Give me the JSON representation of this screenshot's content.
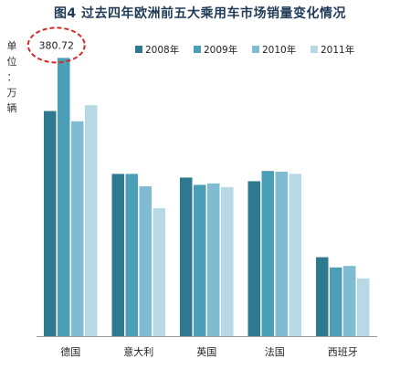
{
  "chart_data": {
    "type": "bar",
    "title": "图4 过去四年欧洲前五大乘用车市场销量变化情况",
    "unit_label": [
      "单",
      "位",
      "：",
      "万",
      "辆"
    ],
    "categories": [
      "德国",
      "意大利",
      "英国",
      "法国",
      "西班牙"
    ],
    "series": [
      {
        "name": "2008年",
        "color": "#2e7890",
        "values": [
          308,
          222,
          217,
          212,
          108
        ]
      },
      {
        "name": "2009年",
        "color": "#4a9eb5",
        "values": [
          380.72,
          222,
          207,
          226,
          94
        ]
      },
      {
        "name": "2010年",
        "color": "#7fbcd1",
        "values": [
          294,
          205,
          209,
          225,
          96
        ]
      },
      {
        "name": "2011年",
        "color": "#b6d9e5",
        "values": [
          316,
          175,
          204,
          222,
          79
        ]
      }
    ],
    "annotation": {
      "text": "380.72",
      "series": 1,
      "category": 0
    },
    "ylim": [
      0,
      400
    ],
    "grid": false,
    "legend_position": "top-right"
  }
}
